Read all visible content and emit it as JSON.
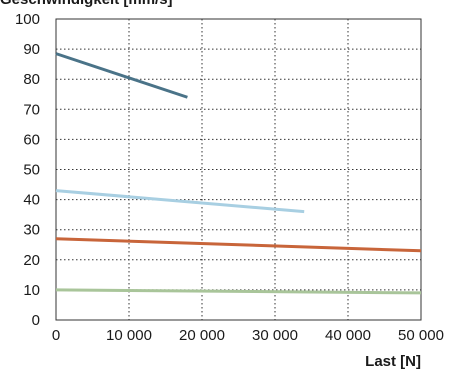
{
  "chart_data": {
    "type": "line",
    "title": "",
    "ylabel": "Geschwindigkeit [mm/s]",
    "xlabel": "Last [N]",
    "xlim": [
      0,
      50000
    ],
    "ylim": [
      0,
      100
    ],
    "grid": true,
    "x_ticks": [
      0,
      10000,
      20000,
      30000,
      40000,
      50000
    ],
    "x_tick_labels": [
      "0",
      "10 000",
      "20 000",
      "30 000",
      "40 000",
      "50 000"
    ],
    "y_ticks": [
      0,
      10,
      20,
      30,
      40,
      50,
      60,
      70,
      80,
      90,
      100
    ],
    "y_tick_labels": [
      "0",
      "10",
      "20",
      "30",
      "40",
      "50",
      "60",
      "70",
      "80",
      "90",
      "100"
    ],
    "series": [
      {
        "color": "#4a7388",
        "x": [
          0,
          18000
        ],
        "y": [
          88.5,
          74
        ]
      },
      {
        "color": "#a8cfe2",
        "x": [
          0,
          34000
        ],
        "y": [
          43,
          36
        ]
      },
      {
        "color": "#c8653a",
        "x": [
          0,
          50000
        ],
        "y": [
          27,
          23
        ]
      },
      {
        "color": "#a9c59a",
        "x": [
          0,
          50000
        ],
        "y": [
          10,
          9
        ]
      }
    ]
  }
}
